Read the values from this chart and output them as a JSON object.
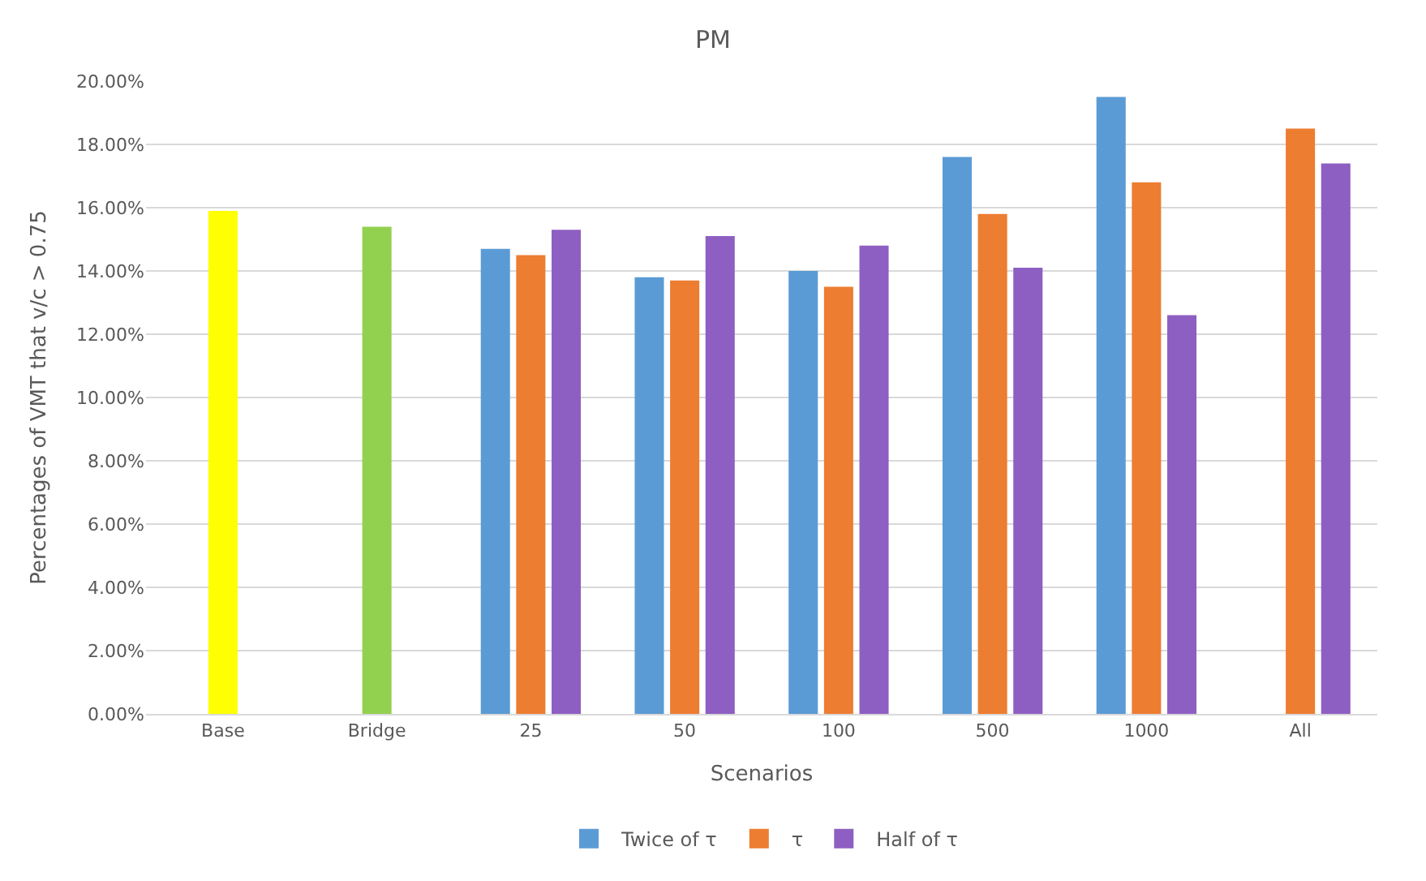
{
  "chart_data": {
    "type": "bar",
    "title": "PM",
    "xlabel": "Scenarios",
    "ylabel": "Percentages of VMT that v/c > 0.75",
    "categories": [
      "Base",
      "Bridge",
      "25",
      "50",
      "100",
      "500",
      "1000",
      "All"
    ],
    "series": [
      {
        "colors": [
          "#ffff00",
          "#92d050",
          null,
          null,
          null,
          null,
          null,
          null
        ],
        "values": [
          15.9,
          15.4,
          null,
          null,
          null,
          null,
          null,
          null
        ]
      },
      {
        "name": "Twice of τ",
        "color": "#5b9bd5",
        "values": [
          null,
          null,
          14.7,
          13.8,
          14.0,
          17.6,
          19.5,
          null
        ]
      },
      {
        "name": "τ",
        "color": "#ed7d31",
        "values": [
          null,
          null,
          14.5,
          13.7,
          13.5,
          15.8,
          16.8,
          18.5
        ]
      },
      {
        "name": "Half of τ",
        "color": "#8e5fc2",
        "values": [
          null,
          null,
          15.3,
          15.1,
          14.8,
          14.1,
          12.6,
          17.4
        ]
      }
    ],
    "ylim": [
      0,
      20
    ],
    "yticks": [
      {
        "value": 0,
        "label": "0.00%"
      },
      {
        "value": 2,
        "label": "2.00%"
      },
      {
        "value": 4,
        "label": "4.00%"
      },
      {
        "value": 6,
        "label": "6.00%"
      },
      {
        "value": 8,
        "label": "8.00%"
      },
      {
        "value": 10,
        "label": "10.00%"
      },
      {
        "value": 12,
        "label": "12.00%"
      },
      {
        "value": 14,
        "label": "14.00%"
      },
      {
        "value": 16,
        "label": "16.00%"
      },
      {
        "value": 18,
        "label": "18.00%"
      },
      {
        "value": 20,
        "label": "20.00%"
      }
    ],
    "grid": "y",
    "legend": "bottom"
  }
}
